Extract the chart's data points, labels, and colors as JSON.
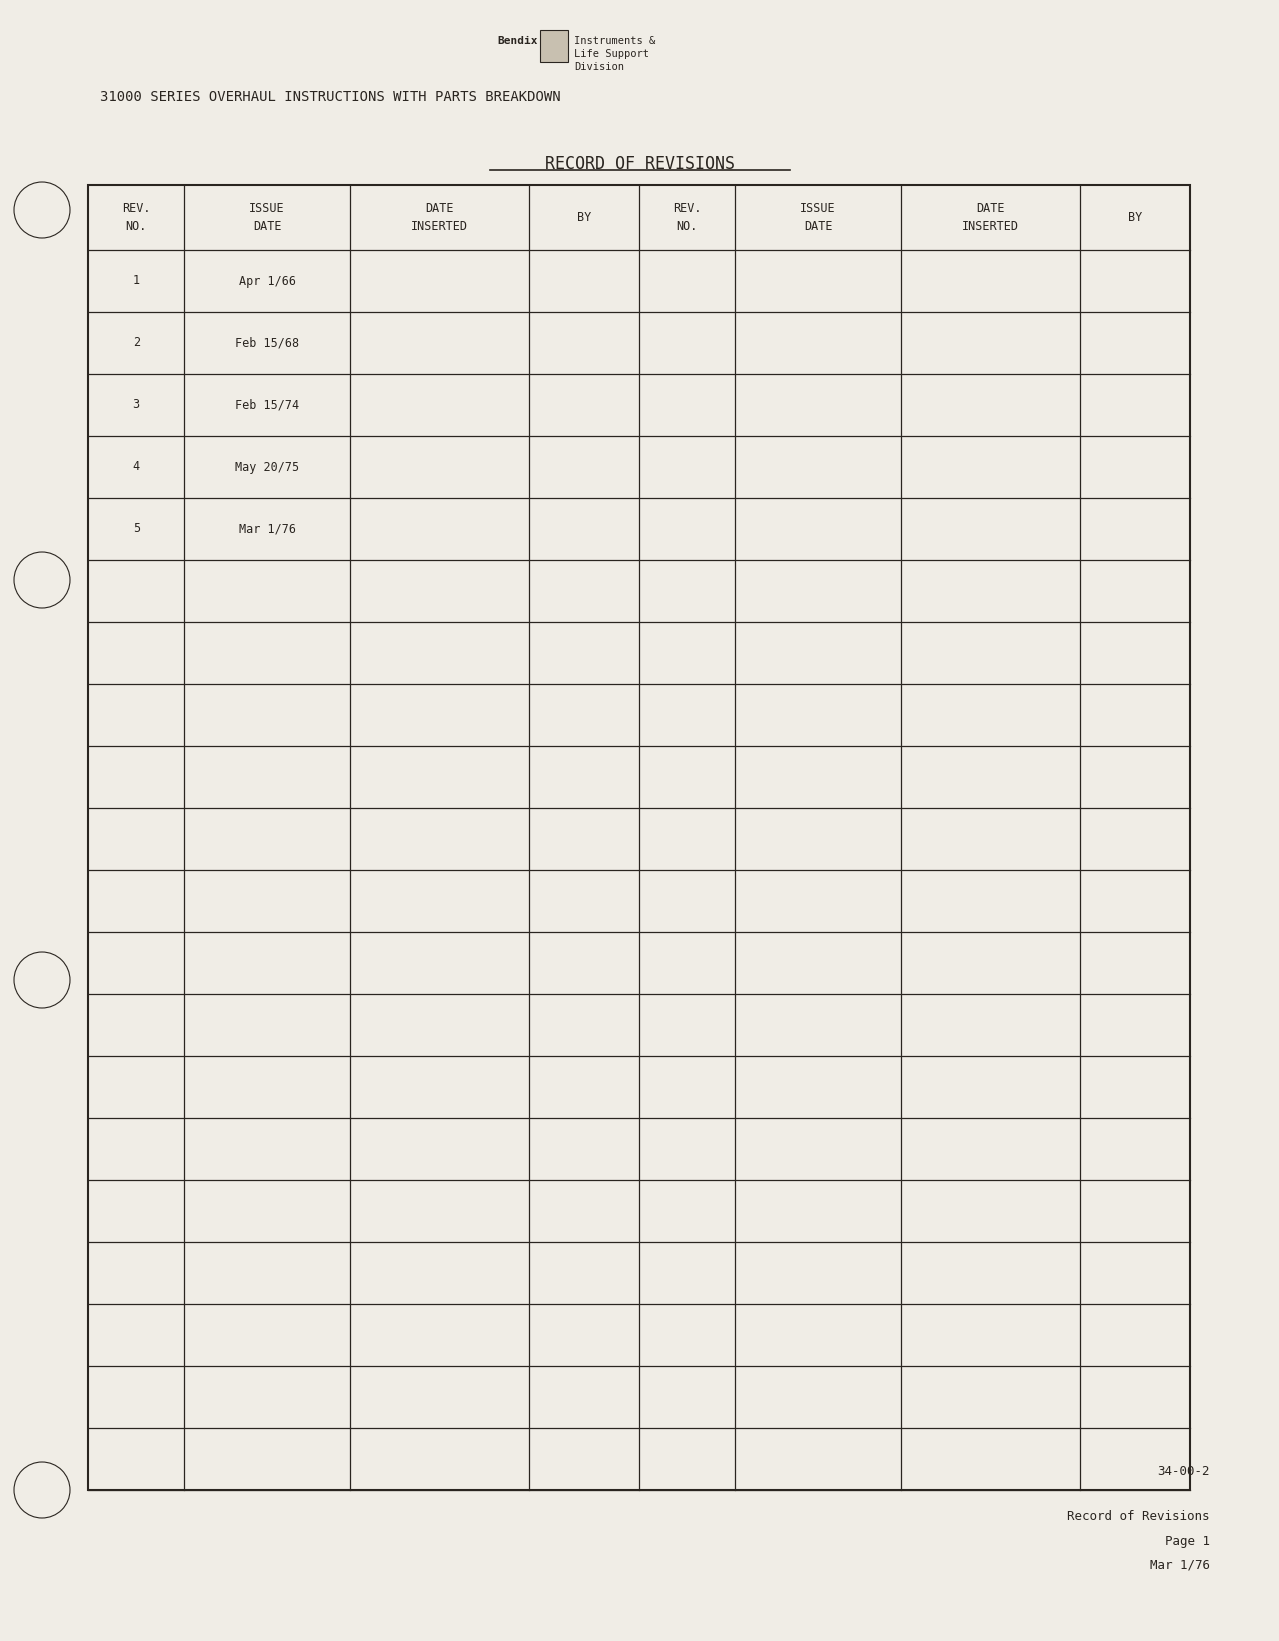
{
  "page_bg": "#f0ede6",
  "text_color": "#2a2520",
  "header_logo_text": "Bendix",
  "header_logo_sub": "Instruments &\nLife Support\nDivision",
  "header_title": "31000 SERIES OVERHAUL INSTRUCTIONS WITH PARTS BREAKDOWN",
  "table_title": "RECORD OF REVISIONS",
  "col_headers_left": [
    "REV.\nNO.",
    "ISSUE\nDATE",
    "DATE\nINSERTED",
    "BY"
  ],
  "col_headers_right": [
    "REV.\nNO.",
    "ISSUE\nDATE",
    "DATE\nINSERTED",
    "BY"
  ],
  "data_rows": [
    [
      "1",
      "Apr 1/66",
      "",
      ""
    ],
    [
      "2",
      "Feb 15/68",
      "",
      ""
    ],
    [
      "3",
      "Feb 15/74",
      "",
      ""
    ],
    [
      "4",
      "May 20/75",
      "",
      ""
    ],
    [
      "5",
      "Mar 1/76",
      "",
      ""
    ],
    [
      "",
      "",
      "",
      ""
    ],
    [
      "",
      "",
      "",
      ""
    ],
    [
      "",
      "",
      "",
      ""
    ],
    [
      "",
      "",
      "",
      ""
    ],
    [
      "",
      "",
      "",
      ""
    ],
    [
      "",
      "",
      "",
      ""
    ],
    [
      "",
      "",
      "",
      ""
    ],
    [
      "",
      "",
      "",
      ""
    ],
    [
      "",
      "",
      "",
      ""
    ],
    [
      "",
      "",
      "",
      ""
    ],
    [
      "",
      "",
      "",
      ""
    ],
    [
      "",
      "",
      "",
      ""
    ],
    [
      "",
      "",
      "",
      ""
    ],
    [
      "",
      "",
      "",
      ""
    ],
    [
      "",
      "",
      "",
      ""
    ]
  ],
  "footer_ref": "34-00-2",
  "footer_line1": "Record of Revisions",
  "footer_line2": "Page 1",
  "footer_line3": "Mar 1/76",
  "font_family": "monospace"
}
